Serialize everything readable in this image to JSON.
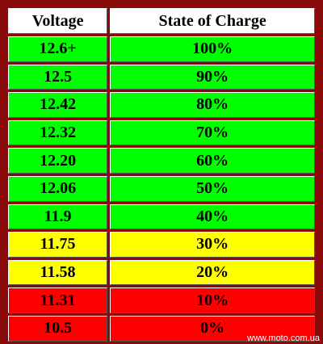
{
  "table": {
    "header": [
      "Voltage",
      "State of Charge"
    ],
    "rows": [
      {
        "cells": [
          "12.6+",
          "100%"
        ],
        "color": "#00ff00"
      },
      {
        "cells": [
          "12.5",
          "90%"
        ],
        "color": "#00ff00"
      },
      {
        "cells": [
          "12.42",
          "80%"
        ],
        "color": "#00ff00"
      },
      {
        "cells": [
          "12.32",
          "70%"
        ],
        "color": "#00ff00"
      },
      {
        "cells": [
          "12.20",
          "60%"
        ],
        "color": "#00ff00"
      },
      {
        "cells": [
          "12.06",
          "50%"
        ],
        "color": "#00ff00"
      },
      {
        "cells": [
          "11.9",
          "40%"
        ],
        "color": "#00ff00"
      },
      {
        "cells": [
          "11.75",
          "30%"
        ],
        "color": "#ffff00"
      },
      {
        "cells": [
          "11.58",
          "20%"
        ],
        "color": "#ffff00"
      },
      {
        "cells": [
          "11.31",
          "10%"
        ],
        "color": "#ff0000"
      },
      {
        "cells": [
          "10.5",
          "0%"
        ],
        "color": "#ff0000"
      }
    ]
  },
  "watermark": "www.moto.com.ua"
}
